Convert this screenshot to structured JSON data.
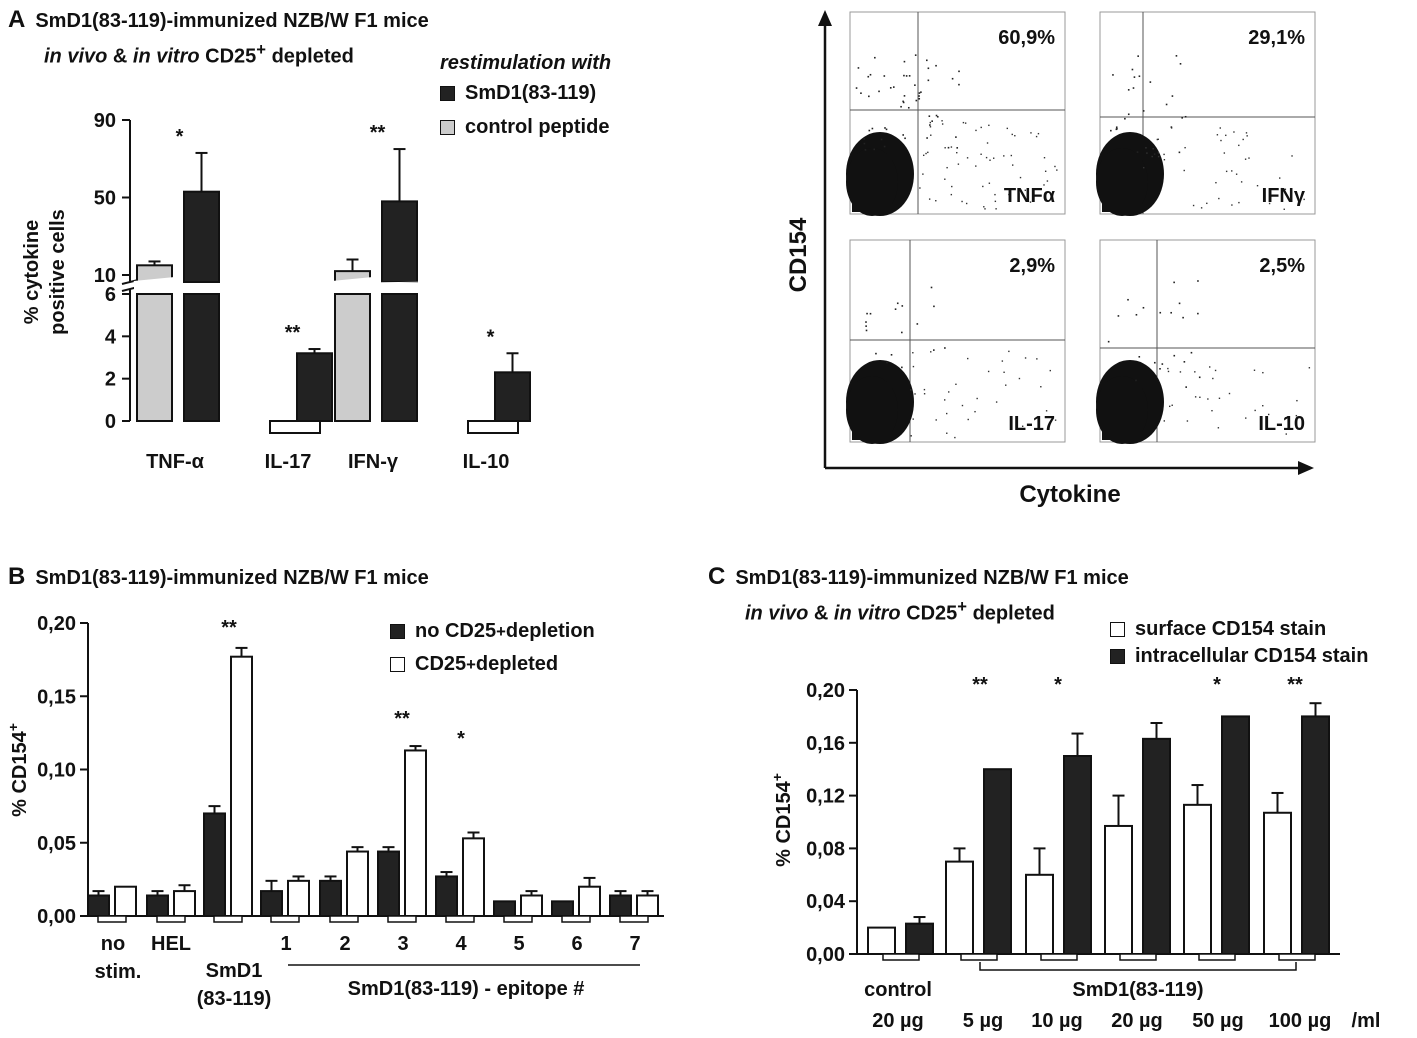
{
  "panel_a": {
    "letter": "A",
    "line1": "SmD1(83-119)-immunized NZB/W F1 mice",
    "line2_a": "in vivo",
    "line2_b": " & ",
    "line2_c": "in vitro",
    "line2_d": " CD25",
    "line2_sup": "+",
    "line2_e": " depleted",
    "legend_title": "restimulation with",
    "legend_items": [
      "SmD1(83-119)",
      "control peptide"
    ],
    "colors": {
      "smd1": "#222222",
      "control": "#cccccc"
    }
  },
  "panel_b": {
    "letter": "B",
    "line1": "SmD1(83-119)-immunized NZB/W F1 mice",
    "legend_1a": "no CD25",
    "legend_1sup": "+",
    "legend_1b": " depletion",
    "legend_2a": "CD25",
    "legend_2sup": "+",
    "legend_2b": " depleted",
    "colors": {
      "no_depletion": "#222222",
      "depleted": "#ffffff"
    }
  },
  "panel_c": {
    "letter": "C",
    "line1": "SmD1(83-119)-immunized NZB/W F1 mice",
    "line2_a": "in vivo",
    "line2_b": " & ",
    "line2_c": "in vitro",
    "line2_d": " CD25",
    "line2_sup": "+",
    "line2_e": " depleted",
    "legend_items": [
      "surface CD154 stain",
      "intracellular CD154 stain"
    ],
    "colors": {
      "surface": "#ffffff",
      "intracellular": "#222222"
    }
  },
  "chart_data": [
    {
      "type": "bar",
      "panel": "A",
      "ylabel_line1": "% cytokine",
      "ylabel_line2": "positive cells",
      "categories": [
        "TNF-α",
        "IL-17",
        "IFN-γ",
        "IL-10"
      ],
      "axis_break": true,
      "lower_ticks": [
        "0",
        "2",
        "4",
        "6"
      ],
      "upper_ticks": [
        "10",
        "50",
        "90"
      ],
      "series": [
        {
          "name": "control peptide",
          "values": [
            15,
            0,
            12,
            0
          ],
          "errors": [
            2,
            0,
            6,
            0
          ]
        },
        {
          "name": "SmD1(83-119)",
          "values": [
            53,
            3.2,
            48,
            2.3
          ],
          "errors": [
            20,
            0.2,
            27,
            0.9
          ]
        }
      ],
      "significance": [
        "*",
        "**",
        "**",
        "*"
      ]
    },
    {
      "type": "scatter",
      "panel": "A-flow",
      "xlabel": "Cytokine",
      "ylabel": "CD154",
      "plots": [
        {
          "cytokine": "TNFα",
          "percent": "60,9%"
        },
        {
          "cytokine": "IFNγ",
          "percent": "29,1%"
        },
        {
          "cytokine": "IL-17",
          "percent": "2,9%"
        },
        {
          "cytokine": "IL-10",
          "percent": "2,5%"
        }
      ]
    },
    {
      "type": "bar",
      "panel": "B",
      "ylabel_a": "% CD154",
      "ylabel_sup": "+",
      "ylim": [
        0,
        0.2
      ],
      "yticks": [
        "0,00",
        "0,05",
        "0,10",
        "0,15",
        "0,20"
      ],
      "categories": [
        "no stim.",
        "HEL",
        "SmD1 (83-119)",
        "1",
        "2",
        "3",
        "4",
        "5",
        "6",
        "7"
      ],
      "xlabels": {
        "nostim_1": "no",
        "nostim_2": "stim.",
        "hel": "HEL",
        "smd1_1": "SmD1",
        "smd1_2": "(83-119)",
        "epitopes": [
          "1",
          "2",
          "3",
          "4",
          "5",
          "6",
          "7"
        ],
        "group_label": "SmD1(83-119) - epitope #"
      },
      "series": [
        {
          "name": "no CD25+ depletion",
          "values": [
            0.014,
            0.014,
            0.07,
            0.017,
            0.024,
            0.044,
            0.027,
            0.01,
            0.01,
            0.014
          ],
          "errors": [
            0.003,
            0.003,
            0.005,
            0.007,
            0.003,
            0.003,
            0.003,
            0,
            0,
            0.003
          ]
        },
        {
          "name": "CD25+ depleted",
          "values": [
            0.02,
            0.017,
            0.177,
            0.024,
            0.044,
            0.113,
            0.053,
            0.014,
            0.02,
            0.014
          ],
          "errors": [
            0,
            0.004,
            0.006,
            0.003,
            0.003,
            0.003,
            0.004,
            0.003,
            0.006,
            0.003
          ]
        }
      ],
      "significance": {
        "SmD1 (83-119)": "**",
        "3": "**",
        "4": "*"
      }
    },
    {
      "type": "bar",
      "panel": "C",
      "ylabel_a": "% CD154",
      "ylabel_sup": "+",
      "ylim": [
        0,
        0.2
      ],
      "yticks": [
        "0,00",
        "0,04",
        "0,08",
        "0,12",
        "0,16",
        "0,20"
      ],
      "categories": [
        "control 20 µg",
        "5 µg",
        "10 µg",
        "20 µg",
        "50 µg",
        "100 µg"
      ],
      "xlabels": {
        "control": "control",
        "control_dose": "20 µg",
        "group": "SmD1(83-119)",
        "doses": [
          "5 µg",
          "10 µg",
          "20 µg",
          "50 µg",
          "100 µg"
        ],
        "unit": "/ml"
      },
      "series": [
        {
          "name": "surface CD154 stain",
          "values": [
            0.02,
            0.07,
            0.06,
            0.097,
            0.113,
            0.107
          ],
          "errors": [
            0,
            0.01,
            0.02,
            0.023,
            0.015,
            0.015
          ]
        },
        {
          "name": "intracellular CD154 stain",
          "values": [
            0.023,
            0.14,
            0.15,
            0.163,
            0.18,
            0.18
          ],
          "errors": [
            0.005,
            0,
            0.017,
            0.012,
            0,
            0.01
          ]
        }
      ],
      "significance": {
        "5 µg": "**",
        "10 µg": "*",
        "50 µg": "*",
        "100 µg": "**"
      }
    }
  ]
}
